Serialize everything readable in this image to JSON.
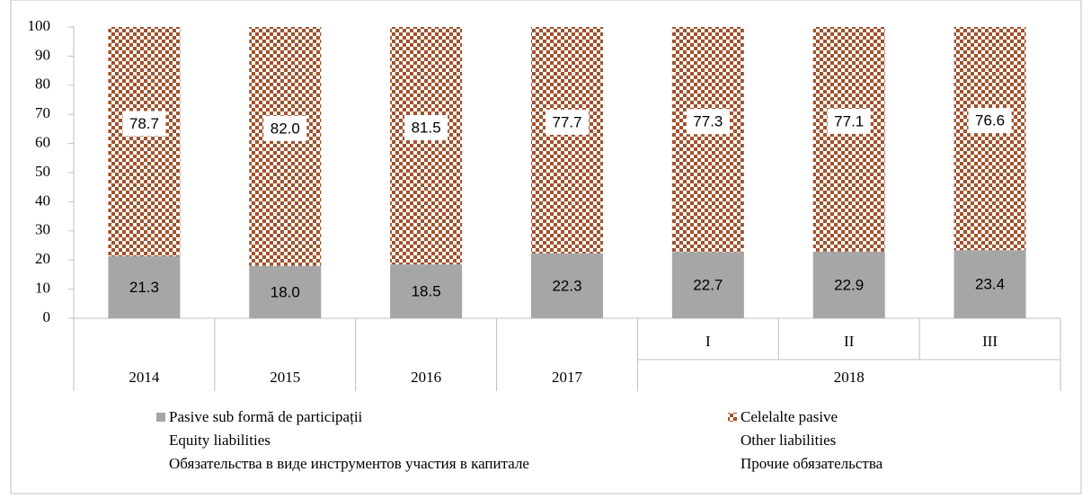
{
  "chart_data": {
    "type": "stacked_bar",
    "categories": [
      "2014",
      "2015",
      "2016",
      "2017",
      "I",
      "II",
      "III"
    ],
    "category_group": {
      "label": "2018",
      "members": [
        "I",
        "II",
        "III"
      ]
    },
    "series": [
      {
        "name": [
          "Pasive sub formă de participații",
          "Equity liabilities",
          "Обязательства в виде инструментов участия в капитале"
        ],
        "color": "#a6a6a6",
        "values": [
          21.3,
          18.0,
          18.5,
          22.3,
          22.7,
          22.9,
          23.4
        ],
        "value_labels": [
          "21.3",
          "18.0",
          "18.5",
          "22.3",
          "22.7",
          "22.9",
          "23.4"
        ]
      },
      {
        "name": [
          "Celelalte pasive",
          "Other liabilities",
          "Прочие обязательства"
        ],
        "color": "#a0522d",
        "pattern": "checker",
        "values": [
          78.7,
          82.0,
          81.5,
          77.7,
          77.3,
          77.1,
          76.6
        ],
        "value_labels": [
          "78.7",
          "82.0",
          "81.5",
          "77.7",
          "77.3",
          "77.1",
          "76.6"
        ]
      }
    ],
    "ylim": [
      0,
      100
    ],
    "yticks": [
      0,
      10,
      20,
      30,
      40,
      50,
      60,
      70,
      80,
      90,
      100
    ]
  }
}
